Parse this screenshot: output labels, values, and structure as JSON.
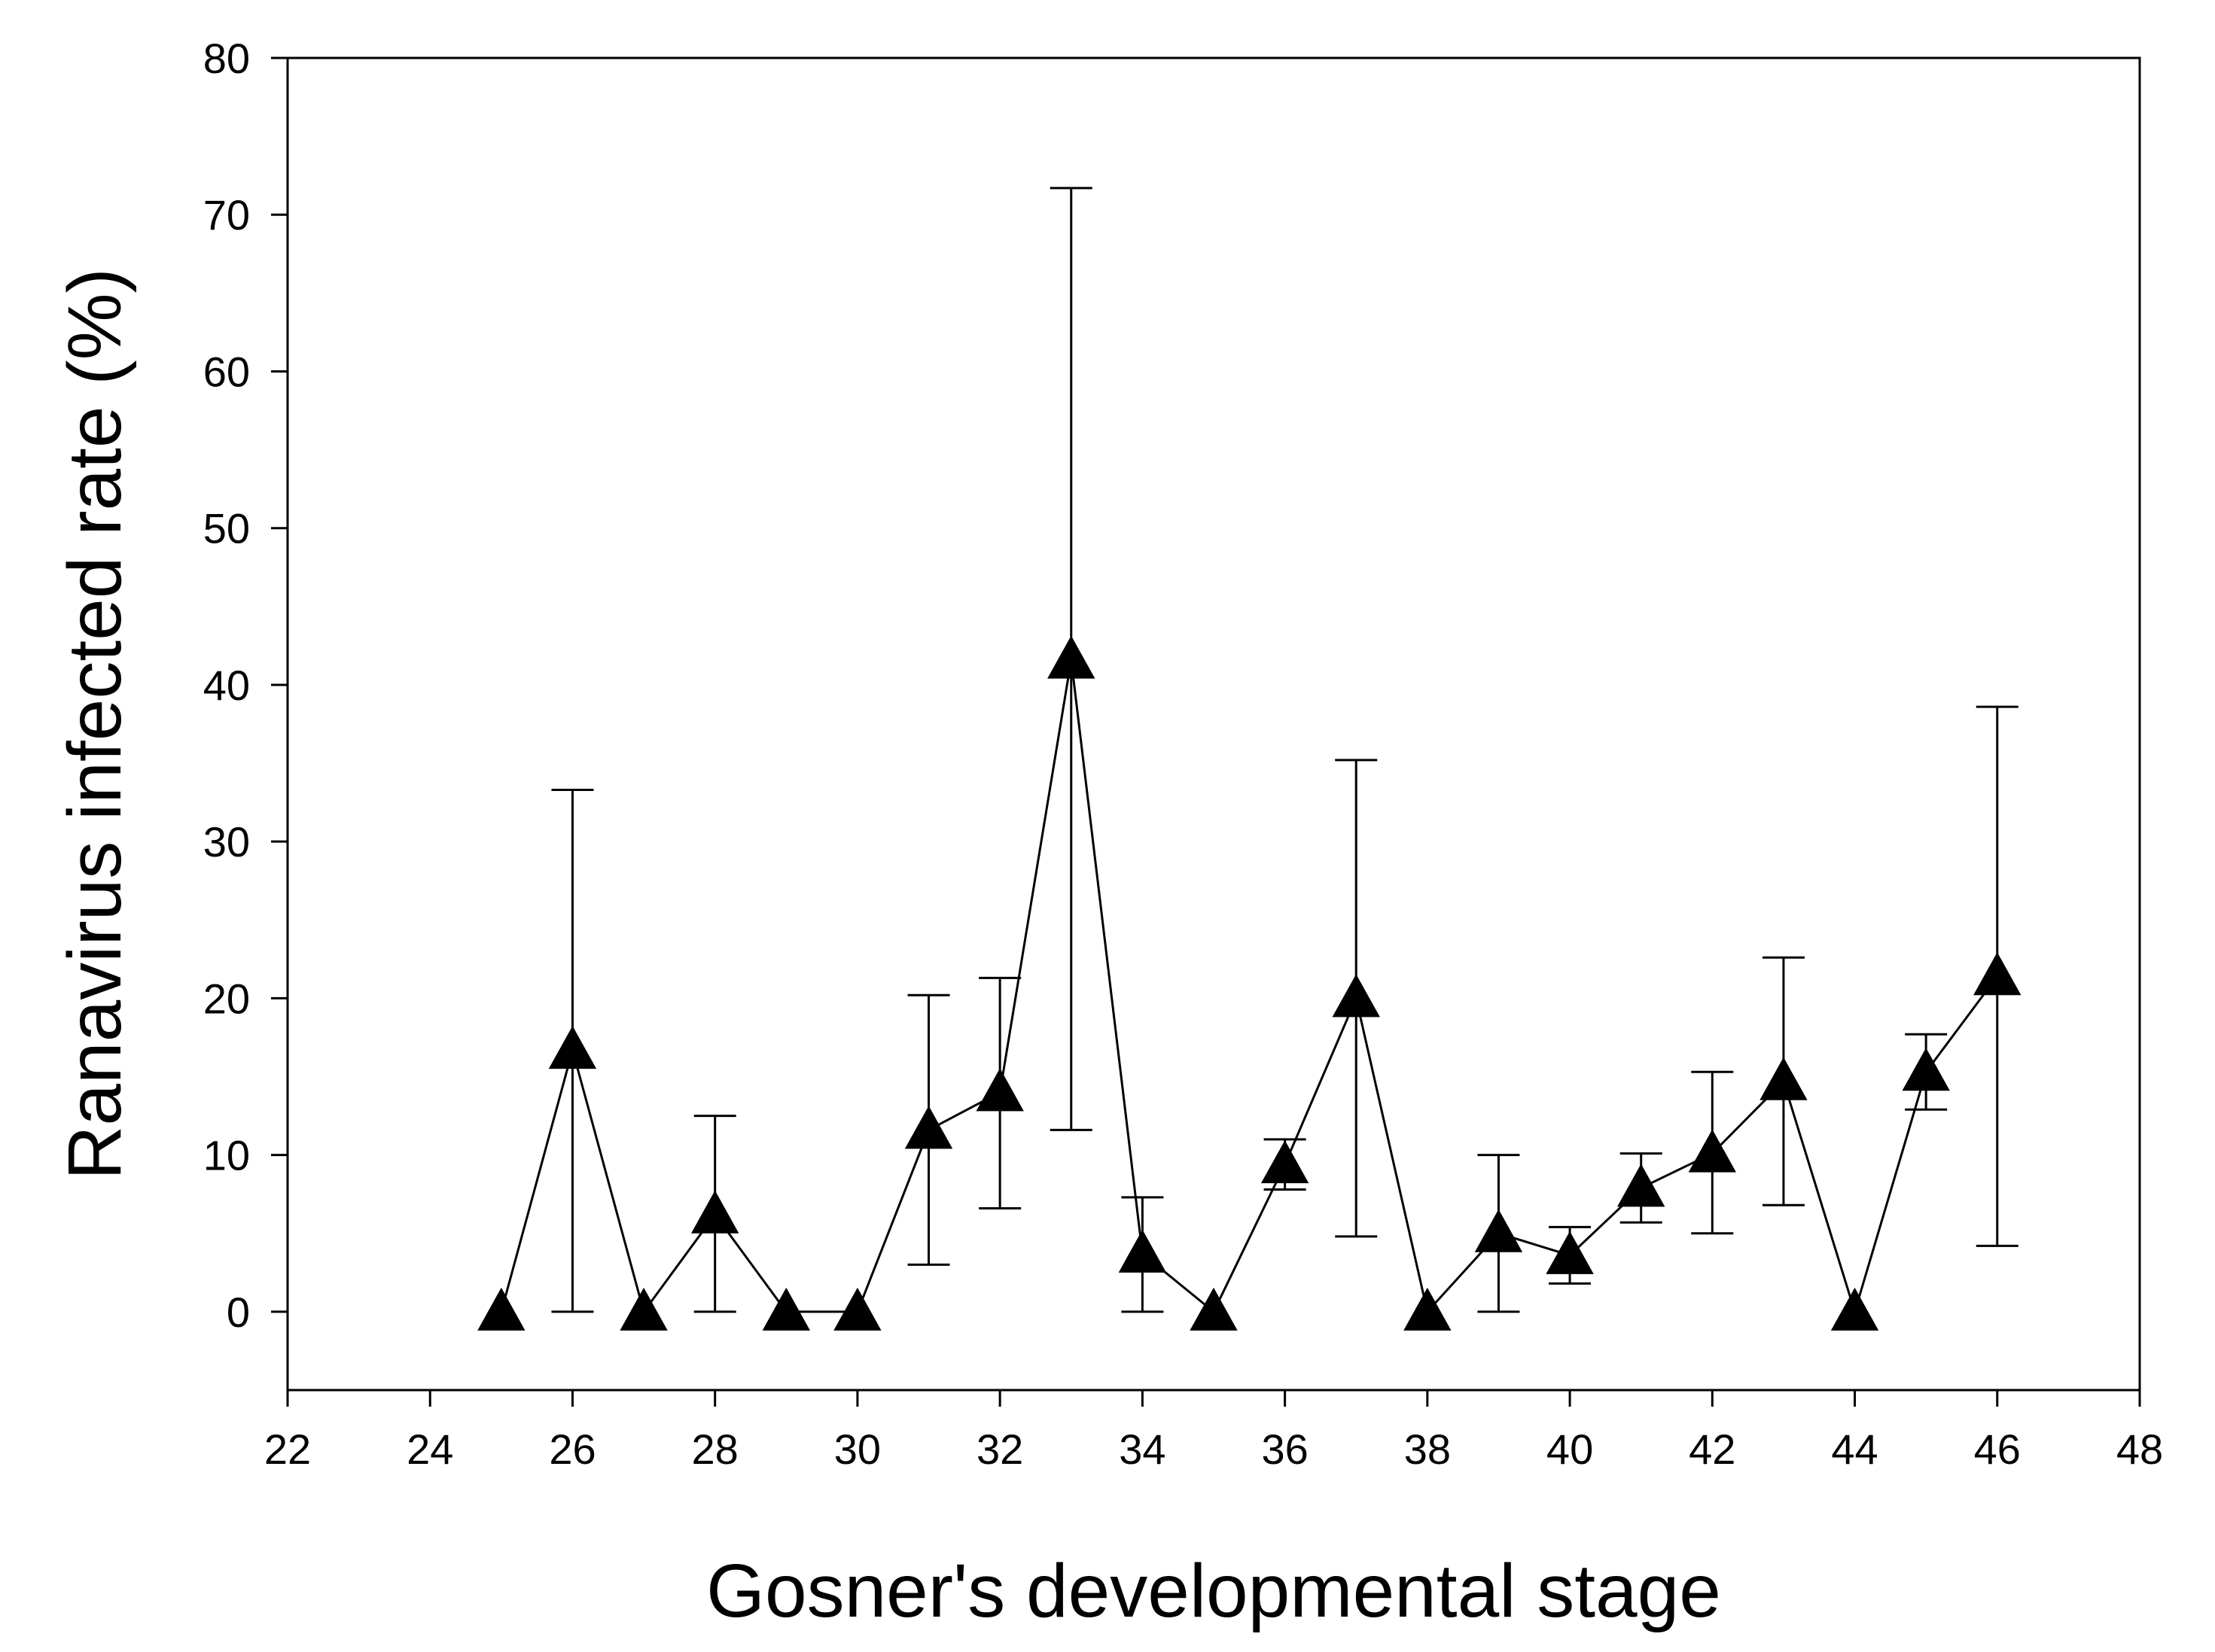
{
  "chart_data": {
    "type": "scatter",
    "title": "",
    "xlabel": "Gosner's developmental stage",
    "ylabel": "Ranavirus infected rate (%)",
    "xlim": [
      22,
      48
    ],
    "ylim": [
      -5,
      80
    ],
    "xticks": [
      22,
      24,
      26,
      28,
      30,
      32,
      34,
      36,
      38,
      40,
      42,
      44,
      46,
      48
    ],
    "yticks": [
      0,
      10,
      20,
      30,
      40,
      50,
      60,
      70,
      80
    ],
    "grid": false,
    "legend": "none",
    "marker": "filled-triangle",
    "connected": true,
    "color": "#000000",
    "series": [
      {
        "points": [
          {
            "x": 25,
            "y": 0
          },
          {
            "x": 26,
            "y": 16.7,
            "err_low": 0,
            "err_high": 33.3
          },
          {
            "x": 27,
            "y": 0
          },
          {
            "x": 28,
            "y": 6.2,
            "err_low": 0,
            "err_high": 12.5
          },
          {
            "x": 29,
            "y": 0
          },
          {
            "x": 30,
            "y": 0
          },
          {
            "x": 31,
            "y": 11.6,
            "err_low": 3.0,
            "err_high": 20.2
          },
          {
            "x": 32,
            "y": 14.0,
            "err_low": 6.6,
            "err_high": 21.3
          },
          {
            "x": 33,
            "y": 41.6,
            "err_low": 11.6,
            "err_high": 71.7
          },
          {
            "x": 34,
            "y": 3.7,
            "err_low": 0,
            "err_high": 7.3
          },
          {
            "x": 35,
            "y": 0
          },
          {
            "x": 36,
            "y": 9.4,
            "err_low": 7.8,
            "err_high": 11.0
          },
          {
            "x": 37,
            "y": 20.0,
            "err_low": 4.8,
            "err_high": 35.2
          },
          {
            "x": 38,
            "y": 0
          },
          {
            "x": 39,
            "y": 5.0,
            "err_low": 0,
            "err_high": 10.0
          },
          {
            "x": 40,
            "y": 3.6,
            "err_low": 1.8,
            "err_high": 5.4
          },
          {
            "x": 41,
            "y": 7.9,
            "err_low": 5.7,
            "err_high": 10.1
          },
          {
            "x": 42,
            "y": 10.1,
            "err_low": 5.0,
            "err_high": 15.3
          },
          {
            "x": 43,
            "y": 14.7,
            "err_low": 6.8,
            "err_high": 22.6
          },
          {
            "x": 44,
            "y": 0
          },
          {
            "x": 45,
            "y": 15.3,
            "err_low": 12.9,
            "err_high": 17.7
          },
          {
            "x": 46,
            "y": 21.4,
            "err_low": 4.2,
            "err_high": 38.6
          }
        ]
      }
    ]
  }
}
